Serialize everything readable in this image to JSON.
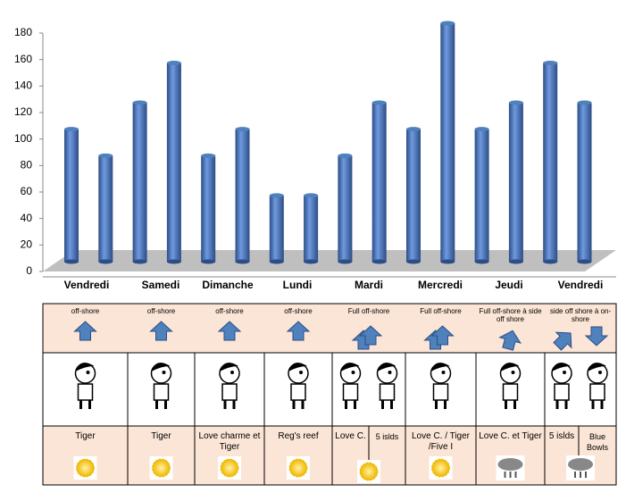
{
  "chart_data": {
    "type": "bar",
    "categories": [
      "Vendredi",
      "Samedi",
      "Dimanche",
      "Lundi",
      "Mardi",
      "Mercredi",
      "Jeudi",
      "Vendredi"
    ],
    "series": [
      {
        "color": "#4f81bd",
        "values": [
          100,
          120,
          80,
          50,
          80,
          100,
          100,
          150
        ]
      },
      {
        "color": "#4f81bd",
        "values": [
          80,
          150,
          100,
          50,
          120,
          180,
          120,
          120
        ]
      }
    ],
    "ylim": [
      0,
      180
    ],
    "yticks": [
      0,
      20,
      40,
      60,
      80,
      100,
      120,
      140,
      160,
      180
    ]
  },
  "table": {
    "wind": [
      "off-shore",
      "off-shore",
      "off-shore",
      "off-shore",
      "Full off-shore",
      "Full off-shore",
      "Full off-shore à side off shore",
      "side off shore à on-shore"
    ],
    "spots": [
      [
        "Tiger"
      ],
      [
        "Tiger"
      ],
      [
        "Love charme et Tiger"
      ],
      [
        "Reg's reef"
      ],
      [
        "Love C.",
        "5 islds"
      ],
      [
        "Love C. / Tiger /Five I"
      ],
      [
        "Love C. et Tiger"
      ],
      [
        "5 islds",
        "Blue Bowls"
      ]
    ]
  }
}
